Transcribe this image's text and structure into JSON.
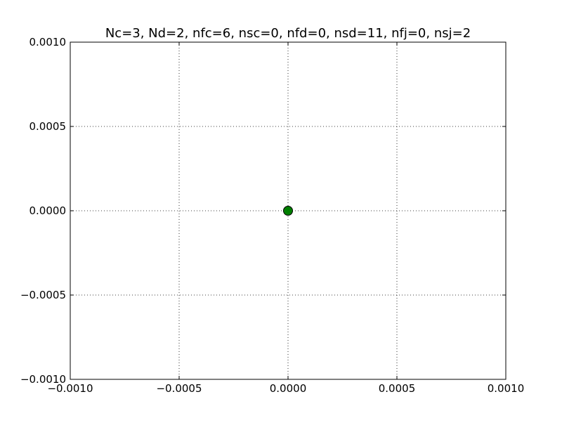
{
  "chart_data": {
    "type": "scatter",
    "title": "Nc=3, Nd=2, nfc=6, nsc=0, nfd=0, nsd=11, nfj=0, nsj=2",
    "xlabel": "",
    "ylabel": "",
    "xlim": [
      -0.001,
      0.001
    ],
    "ylim": [
      -0.001,
      0.001
    ],
    "x_ticks": [
      -0.001,
      -0.0005,
      0.0,
      0.0005,
      0.001
    ],
    "y_ticks": [
      -0.001,
      -0.0005,
      0.0,
      0.0005,
      0.001
    ],
    "x_tick_labels": [
      "−0.0010",
      "−0.0005",
      "0.0000",
      "0.0005",
      "0.0010"
    ],
    "y_tick_labels": [
      "−0.0010",
      "−0.0005",
      "0.0000",
      "0.0005",
      "0.0010"
    ],
    "grid": true,
    "series": [
      {
        "points": [
          {
            "x": 0.0,
            "y": 0.0
          }
        ],
        "color": "#007f00",
        "edge_color": "#000000",
        "marker": "circle"
      }
    ]
  }
}
